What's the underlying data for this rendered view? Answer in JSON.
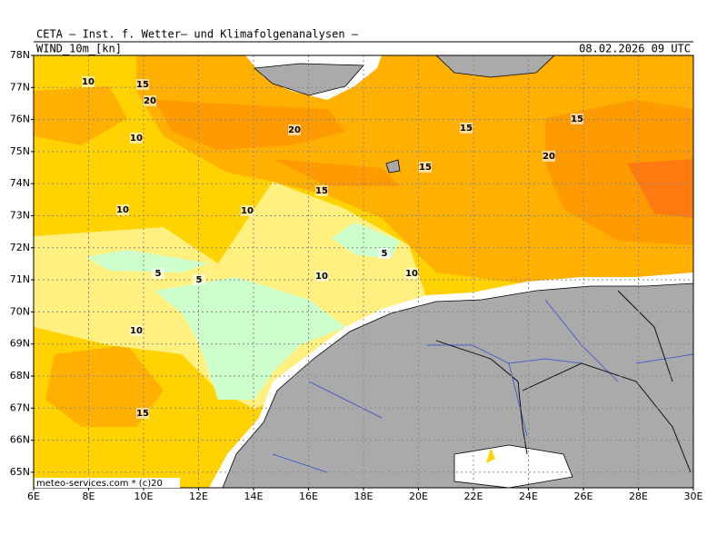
{
  "header": {
    "title": "CETA — Inst. f. Wetter— und Klimafolgenanalysen —",
    "field": "WIND_10m_[kn]",
    "valid_time": "08.02.2026 09 UTC"
  },
  "lat_labels": [
    "78N",
    "77N",
    "76N",
    "75N",
    "74N",
    "73N",
    "72N",
    "71N",
    "70N",
    "69N",
    "68N",
    "67N",
    "66N",
    "65N"
  ],
  "lon_labels": [
    "6E",
    "8E",
    "10E",
    "12E",
    "14E",
    "16E",
    "18E",
    "20E",
    "22E",
    "24E",
    "26E",
    "28E",
    "30E"
  ],
  "contour_labels": [
    "10",
    "15",
    "20",
    "10",
    "20",
    "15",
    "15",
    "15",
    "15",
    "20",
    "10",
    "10",
    "5",
    "5",
    "10",
    "5",
    "10",
    "10",
    "15"
  ],
  "credit": "meteo-services.com * (c)20"
}
